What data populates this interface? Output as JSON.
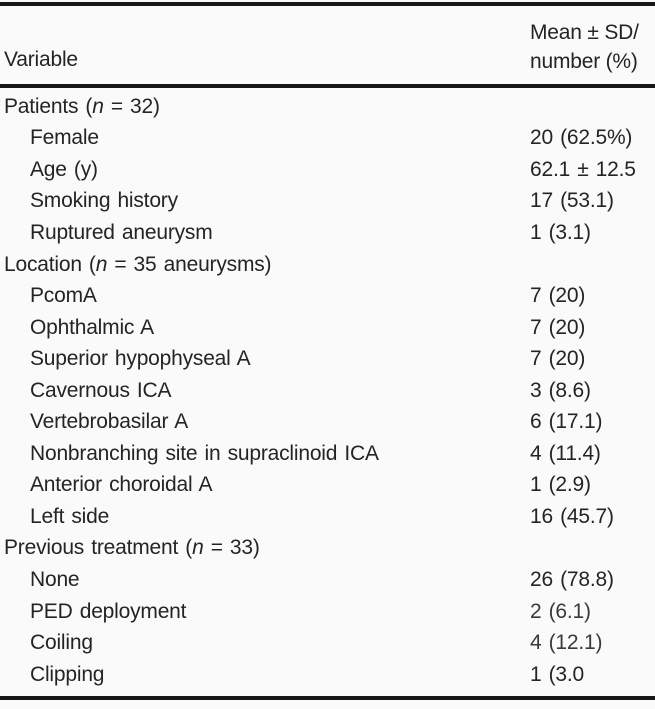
{
  "page": {
    "background_color": "#fafafa",
    "rule_color": "#161616",
    "text_color": "#242424"
  },
  "header": {
    "variable_label": "Variable",
    "value_label_line1": "Mean ± SD/",
    "value_label_line2": "number (%)"
  },
  "rows": [
    {
      "type": "section",
      "pre": "Patients (",
      "italic": "n",
      "post": " = 32)",
      "value": ""
    },
    {
      "type": "sub",
      "pre": "Female",
      "italic": "",
      "post": "",
      "value": "20 (62.5%)"
    },
    {
      "type": "sub",
      "pre": "Age (y)",
      "italic": "",
      "post": "",
      "value": "62.1 ± 12.5"
    },
    {
      "type": "sub",
      "pre": "Smoking history",
      "italic": "",
      "post": "",
      "value": "17 (53.1)"
    },
    {
      "type": "sub",
      "pre": "Ruptured aneurysm",
      "italic": "",
      "post": "",
      "value": "1 (3.1)"
    },
    {
      "type": "section",
      "pre": "Location (",
      "italic": "n",
      "post": " = 35 aneurysms)",
      "value": ""
    },
    {
      "type": "sub",
      "pre": "PcomA",
      "italic": "",
      "post": "",
      "value": "7 (20)"
    },
    {
      "type": "sub",
      "pre": "Ophthalmic A",
      "italic": "",
      "post": "",
      "value": "7 (20)"
    },
    {
      "type": "sub",
      "pre": "Superior hypophyseal A",
      "italic": "",
      "post": "",
      "value": "7 (20)"
    },
    {
      "type": "sub",
      "pre": "Cavernous ICA",
      "italic": "",
      "post": "",
      "value": "3 (8.6)"
    },
    {
      "type": "sub",
      "pre": "Vertebrobasilar A",
      "italic": "",
      "post": "",
      "value": "6 (17.1)"
    },
    {
      "type": "sub",
      "pre": "Nonbranching site in supraclinoid ICA",
      "italic": "",
      "post": "",
      "value": "4 (11.4)"
    },
    {
      "type": "sub",
      "pre": "Anterior choroidal A",
      "italic": "",
      "post": "",
      "value": "1 (2.9)"
    },
    {
      "type": "sub",
      "pre": "Left side",
      "italic": "",
      "post": "",
      "value": "16 (45.7)"
    },
    {
      "type": "section",
      "pre": "Previous treatment (",
      "italic": "n",
      "post": " = 33)",
      "value": ""
    },
    {
      "type": "sub",
      "pre": "None",
      "italic": "",
      "post": "",
      "value": "26 (78.8)"
    },
    {
      "type": "sub",
      "pre": "PED deployment",
      "italic": "",
      "post": "",
      "value": "2 (6.1)"
    },
    {
      "type": "sub",
      "pre": "Coiling",
      "italic": "",
      "post": "",
      "value": "4 (12.1)"
    },
    {
      "type": "sub",
      "pre": "Clipping",
      "italic": "",
      "post": "",
      "value": "1 (3.0"
    }
  ]
}
